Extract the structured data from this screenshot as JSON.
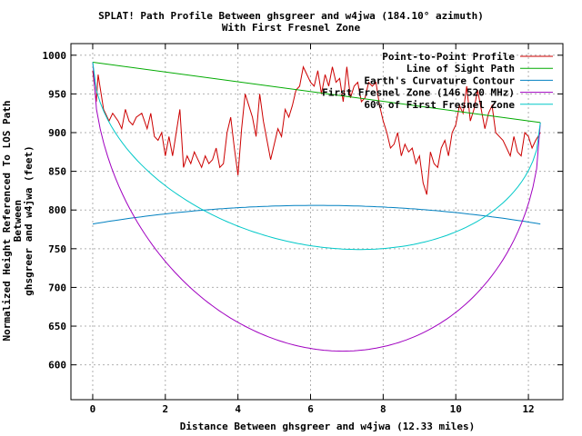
{
  "chart_data": {
    "type": "line",
    "title": "SPLAT! Path Profile Between ghsgreer and w4jwa (184.10° azimuth)",
    "subtitle": "With First Fresnel Zone",
    "xlabel": "Distance Between ghsgreer and w4jwa (12.33 miles)",
    "ylabel_line1": "Normalized Height Referenced To LOS Path Between",
    "ylabel_line2": "ghsgreer and w4jwa (feet)",
    "xlim": [
      -0.6,
      12.95
    ],
    "ylim": [
      555,
      1015
    ],
    "x_ticks": [
      0,
      2,
      4,
      6,
      8,
      10,
      12
    ],
    "y_ticks": [
      600,
      650,
      700,
      750,
      800,
      850,
      900,
      950,
      1000
    ],
    "grid": true,
    "legend_position": "top-right",
    "path_length": 12.33,
    "series": [
      {
        "name": "Point-to-Point Profile",
        "color": "#cc0000",
        "x": [
          0,
          0.1,
          0.15,
          0.2,
          0.3,
          0.45,
          0.55,
          0.7,
          0.8,
          0.9,
          1.0,
          1.1,
          1.2,
          1.35,
          1.5,
          1.6,
          1.7,
          1.8,
          1.9,
          2.0,
          2.1,
          2.2,
          2.3,
          2.4,
          2.5,
          2.6,
          2.7,
          2.8,
          2.9,
          3.0,
          3.1,
          3.2,
          3.3,
          3.4,
          3.5,
          3.6,
          3.7,
          3.8,
          3.9,
          4.0,
          4.1,
          4.2,
          4.3,
          4.4,
          4.5,
          4.6,
          4.7,
          4.8,
          4.9,
          5.0,
          5.1,
          5.2,
          5.3,
          5.4,
          5.5,
          5.6,
          5.7,
          5.8,
          5.9,
          6.0,
          6.1,
          6.2,
          6.3,
          6.4,
          6.5,
          6.6,
          6.7,
          6.8,
          6.9,
          7.0,
          7.1,
          7.2,
          7.3,
          7.4,
          7.5,
          7.6,
          7.7,
          7.8,
          7.9,
          8.0,
          8.1,
          8.2,
          8.3,
          8.4,
          8.5,
          8.6,
          8.7,
          8.8,
          8.9,
          9.0,
          9.1,
          9.2,
          9.3,
          9.4,
          9.5,
          9.6,
          9.7,
          9.8,
          9.9,
          10.0,
          10.1,
          10.2,
          10.3,
          10.4,
          10.5,
          10.6,
          10.7,
          10.8,
          10.9,
          11.0,
          11.1,
          11.2,
          11.3,
          11.4,
          11.5,
          11.6,
          11.7,
          11.8,
          11.9,
          12.0,
          12.1,
          12.2,
          12.33
        ],
        "values": [
          980,
          940,
          975,
          960,
          930,
          915,
          925,
          915,
          905,
          930,
          915,
          910,
          920,
          925,
          905,
          925,
          895,
          890,
          900,
          870,
          895,
          870,
          900,
          930,
          855,
          870,
          860,
          875,
          865,
          855,
          870,
          860,
          865,
          880,
          855,
          860,
          900,
          920,
          880,
          845,
          905,
          950,
          935,
          920,
          895,
          950,
          915,
          890,
          865,
          885,
          905,
          895,
          930,
          920,
          935,
          955,
          960,
          985,
          975,
          965,
          960,
          980,
          950,
          975,
          960,
          985,
          965,
          970,
          940,
          985,
          945,
          960,
          965,
          940,
          945,
          965,
          960,
          965,
          935,
          915,
          900,
          880,
          885,
          900,
          870,
          885,
          875,
          880,
          860,
          870,
          835,
          820,
          875,
          860,
          855,
          880,
          890,
          870,
          900,
          910,
          935,
          925,
          960,
          915,
          930,
          955,
          930,
          905,
          925,
          935,
          900,
          895,
          890,
          880,
          870,
          895,
          875,
          870,
          900,
          895,
          880,
          890,
          900
        ]
      },
      {
        "name": "Line of Sight Path",
        "color": "#00aa00",
        "x": [
          0,
          12.33
        ],
        "values": [
          991,
          913
        ]
      },
      {
        "name": "Earth's Curvature Contour",
        "color": "#0080c0",
        "curve": "earth",
        "endpoints_y": 782,
        "mid_y": 806
      },
      {
        "name": "First Fresnel Zone (146.520 MHz)",
        "color": "#a000c0",
        "curve": "fresnel",
        "fraction": 1.0,
        "max_depth": 332
      },
      {
        "name": "60% of First Fresnel Zone",
        "color": "#00c8c8",
        "curve": "fresnel",
        "fraction": 0.6,
        "max_depth": 332
      }
    ]
  }
}
